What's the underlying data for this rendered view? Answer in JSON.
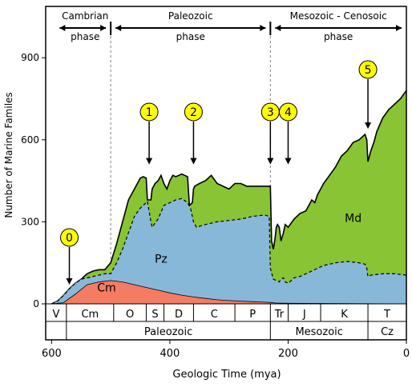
{
  "chart_data": {
    "type": "area",
    "xlabel": "Geologic Time (mya)",
    "ylabel": "Number of Marine Familes",
    "x_reversed": true,
    "xlim": [
      610,
      0
    ],
    "ylim": [
      0,
      1000
    ],
    "x_ticks": [
      600,
      400,
      200,
      0
    ],
    "y_ticks": [
      0,
      300,
      600,
      900
    ],
    "phases": [
      {
        "label_lines": [
          "Cambrian",
          "phase"
        ],
        "start": 600,
        "end": 500
      },
      {
        "label_lines": [
          "Paleozoic",
          "phase"
        ],
        "start": 500,
        "end": 230
      },
      {
        "label_lines": [
          "Mesozoic - Cenosoic",
          "phase"
        ],
        "start": 230,
        "end": 0
      }
    ],
    "periods": [
      {
        "label": "V",
        "start": 610,
        "end": 575
      },
      {
        "label": "Cm",
        "start": 575,
        "end": 495
      },
      {
        "label": "O",
        "start": 495,
        "end": 440
      },
      {
        "label": "S",
        "start": 440,
        "end": 410
      },
      {
        "label": "D",
        "start": 410,
        "end": 360
      },
      {
        "label": "C",
        "start": 360,
        "end": 290
      },
      {
        "label": "P",
        "start": 290,
        "end": 230
      },
      {
        "label": "Tr",
        "start": 230,
        "end": 200
      },
      {
        "label": "J",
        "start": 200,
        "end": 145
      },
      {
        "label": "K",
        "start": 145,
        "end": 65
      },
      {
        "label": "T",
        "start": 65,
        "end": 0
      }
    ],
    "eras": [
      {
        "label": "Paleozoic",
        "start": 575,
        "end": 230
      },
      {
        "label": "Mesozoic",
        "start": 230,
        "end": 65
      },
      {
        "label": "Cz",
        "start": 65,
        "end": 0
      }
    ],
    "events": [
      {
        "label": "0",
        "x": 570,
        "arrow_to": 70
      },
      {
        "label": "1",
        "x": 435,
        "arrow_to": 510
      },
      {
        "label": "2",
        "x": 360,
        "arrow_to": 510
      },
      {
        "label": "3",
        "x": 230,
        "arrow_to": 510
      },
      {
        "label": "4",
        "x": 200,
        "arrow_to": 510
      },
      {
        "label": "5",
        "x": 65,
        "arrow_to": 640
      }
    ],
    "series": [
      {
        "name": "Cm",
        "color": "#f47c62",
        "x": [
          600,
          580,
          560,
          540,
          520,
          500,
          480,
          460,
          440,
          420,
          400,
          380,
          360,
          340,
          320,
          300,
          280,
          260,
          240,
          230,
          220,
          200,
          0
        ],
        "y": [
          0,
          4,
          35,
          70,
          80,
          85,
          80,
          70,
          60,
          50,
          40,
          32,
          25,
          20,
          15,
          12,
          10,
          8,
          6,
          5,
          3,
          2,
          0
        ]
      },
      {
        "name": "Pz",
        "color": "#88b8d8",
        "x": [
          600,
          590,
          580,
          570,
          560,
          550,
          540,
          530,
          520,
          510,
          500,
          490,
          480,
          470,
          460,
          450,
          440,
          438,
          432,
          430,
          420,
          410,
          400,
          390,
          380,
          370,
          365,
          360,
          355,
          340,
          320,
          300,
          280,
          260,
          240,
          232,
          230,
          225,
          220,
          215,
          212,
          208,
          205,
          200,
          190,
          180,
          170,
          160,
          150,
          140,
          120,
          100,
          80,
          70,
          67,
          65,
          60,
          40,
          20,
          0
        ],
        "y": [
          0,
          10,
          30,
          55,
          75,
          90,
          95,
          100,
          105,
          110,
          110,
          150,
          200,
          260,
          320,
          350,
          370,
          375,
          300,
          280,
          310,
          360,
          370,
          380,
          385,
          370,
          350,
          300,
          280,
          290,
          300,
          305,
          310,
          320,
          325,
          320,
          130,
          90,
          85,
          80,
          90,
          95,
          80,
          75,
          95,
          100,
          110,
          120,
          130,
          140,
          150,
          155,
          150,
          145,
          130,
          100,
          105,
          110,
          110,
          105
        ]
      },
      {
        "name": "Md",
        "color": "#88c434",
        "x": [
          600,
          590,
          580,
          570,
          560,
          550,
          540,
          530,
          520,
          510,
          500,
          490,
          480,
          470,
          460,
          450,
          445,
          440,
          438,
          432,
          430,
          425,
          420,
          415,
          410,
          405,
          400,
          395,
          390,
          385,
          380,
          375,
          370,
          367,
          362,
          360,
          358,
          350,
          340,
          330,
          320,
          310,
          300,
          295,
          290,
          280,
          270,
          260,
          250,
          240,
          232,
          230,
          228,
          225,
          222,
          220,
          218,
          215,
          212,
          208,
          205,
          200,
          190,
          180,
          170,
          165,
          160,
          155,
          150,
          140,
          130,
          120,
          110,
          100,
          90,
          80,
          70,
          67,
          65,
          60,
          55,
          50,
          40,
          30,
          20,
          10,
          0
        ],
        "y": [
          0,
          10,
          30,
          55,
          75,
          90,
          110,
          120,
          125,
          125,
          150,
          220,
          300,
          380,
          420,
          460,
          465,
          460,
          380,
          380,
          420,
          440,
          450,
          470,
          440,
          420,
          450,
          470,
          465,
          470,
          475,
          470,
          465,
          360,
          370,
          420,
          430,
          440,
          450,
          470,
          440,
          430,
          420,
          430,
          440,
          440,
          430,
          430,
          430,
          430,
          430,
          430,
          230,
          200,
          240,
          280,
          290,
          280,
          230,
          260,
          290,
          280,
          310,
          330,
          340,
          360,
          380,
          370,
          400,
          440,
          470,
          500,
          540,
          560,
          590,
          600,
          620,
          600,
          520,
          560,
          590,
          630,
          680,
          710,
          730,
          750,
          780
        ]
      }
    ]
  }
}
